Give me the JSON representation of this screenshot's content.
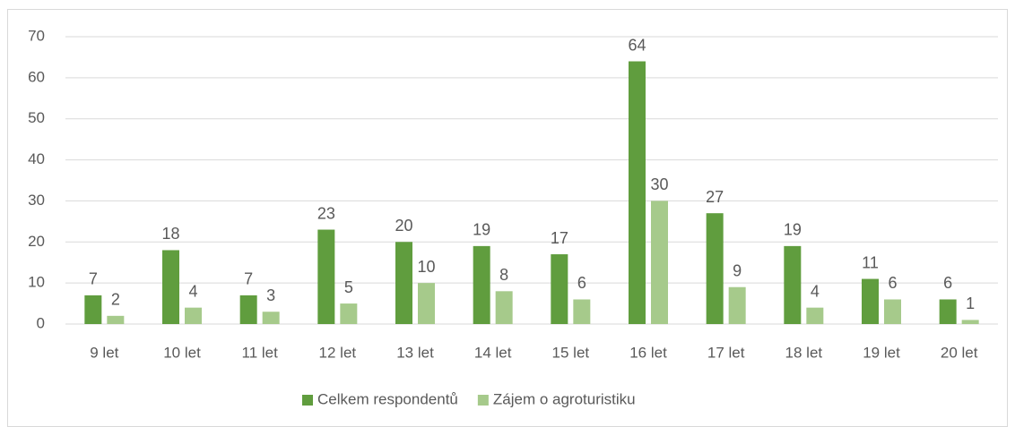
{
  "chart_data": {
    "type": "bar",
    "categories": [
      "9 let",
      "10 let",
      "11 let",
      "12 let",
      "13 let",
      "14 let",
      "15 let",
      "16 let",
      "17 let",
      "18 let",
      "19 let",
      "20 let"
    ],
    "series": [
      {
        "name": "Celkem respondentů",
        "color": "#609d3e",
        "values": [
          7,
          18,
          7,
          23,
          20,
          19,
          17,
          64,
          27,
          19,
          11,
          6
        ]
      },
      {
        "name": "Zájem o agroturistiku",
        "color": "#a6ca8b",
        "values": [
          2,
          4,
          3,
          5,
          10,
          8,
          6,
          30,
          9,
          4,
          6,
          1
        ]
      }
    ],
    "ylim": [
      0,
      70
    ],
    "yticks": [
      0,
      10,
      20,
      30,
      40,
      50,
      60,
      70
    ],
    "grid": true,
    "legend": "bottom"
  }
}
